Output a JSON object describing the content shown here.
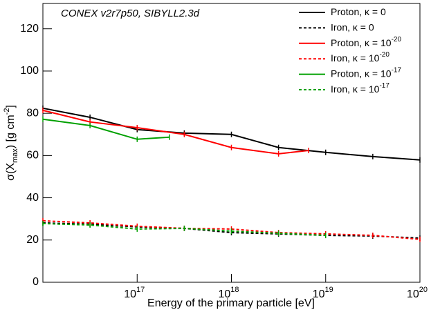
{
  "chart_data": {
    "type": "line",
    "annotation": "CONEX v2r7p50, SIBYLL2.3d",
    "xlabel": "Energy of the primary particle [eV]",
    "ylabel": "σ(X",
    "ylabel_sub": "max",
    "ylabel_mid": ") [g cm",
    "ylabel_sup": "-2",
    "ylabel_end": "]",
    "xscale": "log",
    "xlim": [
      1e+16,
      1e+20
    ],
    "xticks": [
      {
        "value": 1e+17,
        "label": "10",
        "exponent": "17"
      },
      {
        "value": 1e+18,
        "label": "10",
        "exponent": "18"
      },
      {
        "value": 1e+19,
        "label": "10",
        "exponent": "19"
      },
      {
        "value": 1e+20,
        "label": "10",
        "exponent": "20"
      }
    ],
    "ylim": [
      0,
      132
    ],
    "yticks": [
      0,
      20,
      40,
      60,
      80,
      100,
      120
    ],
    "legend": "top-right",
    "series": [
      {
        "name": "Proton, κ = 0",
        "color": "#000000",
        "dash": false,
        "x": [
          1e+16,
          3.162e+16,
          1e+17,
          3.162e+17,
          1e+18,
          3.162e+18,
          1e+19,
          3.162e+19,
          1e+20
        ],
        "values": [
          82.4,
          78.1,
          72.3,
          70.6,
          70.0,
          63.8,
          61.5,
          59.5,
          57.9
        ]
      },
      {
        "name": "Iron, κ = 0",
        "color": "#000000",
        "dash": true,
        "x": [
          1e+16,
          3.162e+16,
          1e+17,
          3.162e+17,
          1e+18,
          3.162e+18,
          1e+19,
          3.162e+19,
          1e+20
        ],
        "values": [
          28.1,
          27.5,
          26.2,
          25.5,
          23.5,
          22.9,
          22.2,
          21.9,
          20.9
        ]
      },
      {
        "name": "Proton, κ = 10",
        "name_sup": "-20",
        "color": "#ff0000",
        "dash": false,
        "x": [
          1e+16,
          3.162e+16,
          1e+17,
          3.162e+17,
          1e+18,
          3.162e+18,
          6.6e+18
        ],
        "values": [
          81.4,
          75.9,
          73.2,
          70.0,
          63.8,
          60.8,
          62.4
        ]
      },
      {
        "name": "Iron, κ = 10",
        "name_sup": "-20",
        "color": "#ff0000",
        "dash": true,
        "x": [
          1e+16,
          3.162e+16,
          1e+17,
          3.162e+17,
          1e+18,
          3.162e+18,
          1e+19,
          3.162e+19,
          1e+20
        ],
        "values": [
          29.1,
          28.1,
          26.5,
          25.5,
          25.2,
          23.5,
          22.9,
          22.2,
          20.3
        ]
      },
      {
        "name": "Proton, κ = 10",
        "name_sup": "-17",
        "color": "#00a000",
        "dash": false,
        "x": [
          1e+16,
          3.162e+16,
          1e+17,
          2.2e+17
        ],
        "values": [
          77.2,
          74.2,
          67.7,
          68.7
        ]
      },
      {
        "name": "Iron, κ = 10",
        "name_sup": "-17",
        "color": "#00a000",
        "dash": true,
        "x": [
          1e+16,
          3.162e+16,
          1e+17,
          3.162e+17,
          1e+18,
          3.162e+18,
          1e+19
        ],
        "values": [
          27.8,
          27.1,
          25.2,
          25.5,
          24.2,
          23.2,
          22.2
        ]
      }
    ]
  }
}
